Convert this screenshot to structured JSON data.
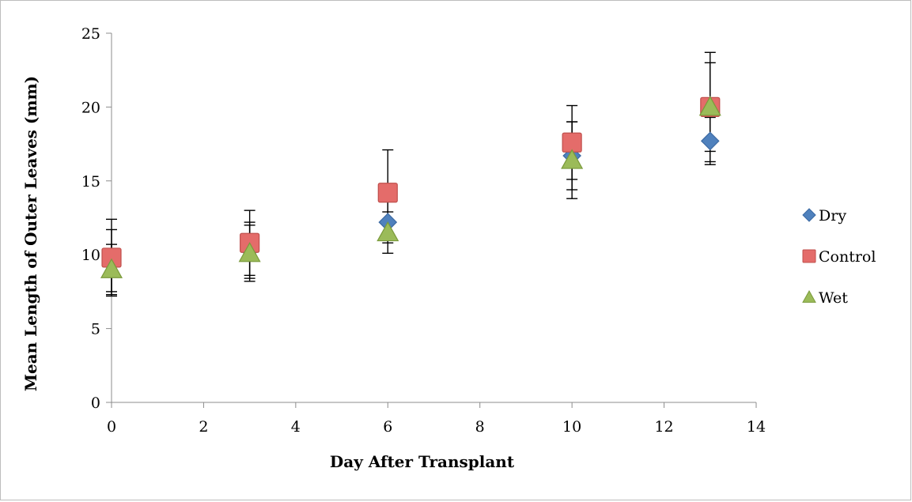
{
  "chart_data": {
    "type": "scatter",
    "title": "",
    "xlabel": "Day After Transplant",
    "ylabel": "Mean Length of Outer  Leaves (mm)",
    "xlim": [
      0,
      14
    ],
    "ylim": [
      0,
      25
    ],
    "xticks": [
      0,
      2,
      4,
      6,
      8,
      10,
      12,
      14
    ],
    "yticks": [
      0,
      5,
      10,
      15,
      20,
      25
    ],
    "grid": false,
    "legend_position": "right",
    "series": [
      {
        "name": "Dry",
        "marker": "diamond",
        "color": "#4f81bd",
        "points": [
          {
            "x": 0,
            "y": 9.6,
            "err": 2.1
          },
          {
            "x": 3,
            "y": 10.3,
            "err": 1.9
          },
          {
            "x": 6,
            "y": 12.2,
            "err": 1.4
          },
          {
            "x": 10,
            "y": 16.7,
            "err": 2.3
          },
          {
            "x": 13,
            "y": 17.7,
            "err": 1.6
          }
        ]
      },
      {
        "name": "Control",
        "marker": "square",
        "color": "#e46c6a",
        "points": [
          {
            "x": 0,
            "y": 9.8,
            "err": 2.6
          },
          {
            "x": 3,
            "y": 10.8,
            "err": 2.2
          },
          {
            "x": 6,
            "y": 14.2,
            "err": 2.9
          },
          {
            "x": 10,
            "y": 17.6,
            "err": 2.5
          },
          {
            "x": 13,
            "y": 20.0,
            "err": 3.7
          }
        ]
      },
      {
        "name": "Wet",
        "marker": "triangle",
        "color": "#9bbb59",
        "points": [
          {
            "x": 0,
            "y": 9.0,
            "err": 1.7
          },
          {
            "x": 3,
            "y": 10.1,
            "err": 1.9
          },
          {
            "x": 6,
            "y": 11.5,
            "err": 1.4
          },
          {
            "x": 10,
            "y": 16.4,
            "err": 2.6
          },
          {
            "x": 13,
            "y": 20.0,
            "err": 3.0
          }
        ]
      }
    ]
  }
}
